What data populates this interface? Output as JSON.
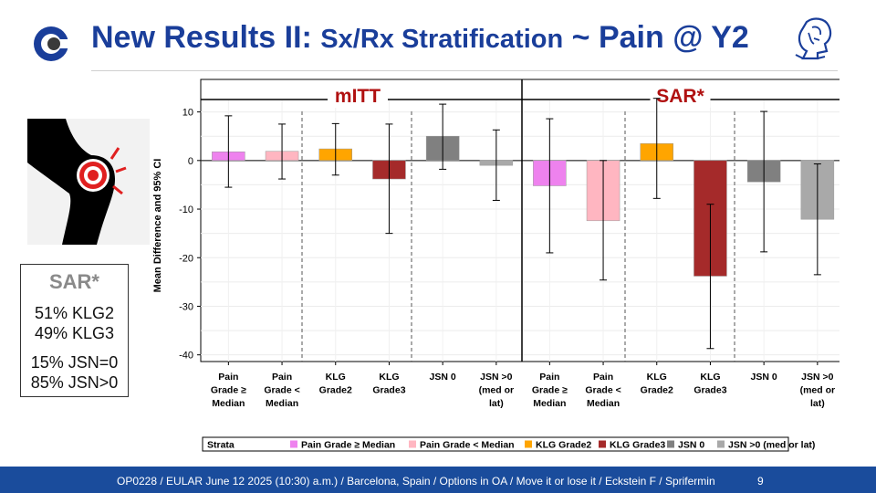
{
  "header": {
    "title_main": "New Results II:",
    "title_sub": "Sx/Rx Stratification",
    "title_tail": "~ Pain @ Y2"
  },
  "colors": {
    "title_blue": "#1a3e9a",
    "footer_blue": "#1a4c9c",
    "panel_title_red": "#b01010"
  },
  "sar_box": {
    "heading": "SAR*",
    "line1": "51% KLG2",
    "line2": "49% KLG3",
    "line3": "15% JSN=0",
    "line4": "85% JSN>0"
  },
  "footer": {
    "text": "OP0228 / EULAR  June 12 2025 (10:30) a.m.) / Barcelona, Spain / Options in OA / Move it or lose it / Eckstein F / Sprifermin",
    "page": "9"
  },
  "chart_data": {
    "type": "bar",
    "ylabel": "Mean Difference and 95% CI",
    "ylim": [
      -41,
      15
    ],
    "yticks": [
      10,
      0,
      -10,
      -20,
      -30,
      -40
    ],
    "panels": [
      {
        "title": "mITT",
        "bars": [
          {
            "label": [
              "Pain",
              "Grade ≥",
              "Median"
            ],
            "value": 1.8,
            "ci": [
              -5.5,
              9.2
            ],
            "color": "#ee82ee"
          },
          {
            "label": [
              "Pain",
              "Grade <",
              "Median"
            ],
            "value": 1.9,
            "ci": [
              -3.8,
              7.5
            ],
            "color": "#ffb6c1"
          },
          {
            "label": [
              "KLG",
              "Grade2"
            ],
            "value": 2.4,
            "ci": [
              -3.0,
              7.6
            ],
            "color": "#ffa500"
          },
          {
            "label": [
              "KLG",
              "Grade3"
            ],
            "value": -3.8,
            "ci": [
              -15.0,
              7.5
            ],
            "color": "#a52a2a"
          },
          {
            "label": [
              "JSN 0"
            ],
            "value": 5.0,
            "ci": [
              -1.8,
              11.6
            ],
            "color": "#808080"
          },
          {
            "label": [
              "JSN >0",
              "(med or",
              "lat)"
            ],
            "value": -1.0,
            "ci": [
              -8.2,
              6.3
            ],
            "color": "#a9a9a9"
          }
        ]
      },
      {
        "title": "SAR*",
        "bars": [
          {
            "label": [
              "Pain",
              "Grade ≥",
              "Median"
            ],
            "value": -5.2,
            "ci": [
              -19.0,
              8.6
            ],
            "color": "#ee82ee"
          },
          {
            "label": [
              "Pain",
              "Grade <",
              "Median"
            ],
            "value": -12.4,
            "ci": [
              -24.6,
              0.0
            ],
            "color": "#ffb6c1"
          },
          {
            "label": [
              "KLG",
              "Grade2"
            ],
            "value": 3.5,
            "ci": [
              -7.8,
              12.8
            ],
            "color": "#ffa500"
          },
          {
            "label": [
              "KLG",
              "Grade3"
            ],
            "value": -23.8,
            "ci": [
              -38.7,
              -9.0
            ],
            "color": "#a52a2a"
          },
          {
            "label": [
              "JSN 0"
            ],
            "value": -4.4,
            "ci": [
              -18.8,
              10.1
            ],
            "color": "#808080"
          },
          {
            "label": [
              "JSN >0",
              "(med or",
              "lat)"
            ],
            "value": -12.1,
            "ci": [
              -23.5,
              -0.7
            ],
            "color": "#a9a9a9"
          }
        ]
      }
    ],
    "legend": {
      "title": "Strata",
      "items": [
        {
          "label": "Pain Grade ≥ Median",
          "color": "#ee82ee"
        },
        {
          "label": "Pain Grade < Median",
          "color": "#ffb6c1"
        },
        {
          "label": "KLG Grade2",
          "color": "#ffa500"
        },
        {
          "label": "KLG Grade3",
          "color": "#a52a2a"
        },
        {
          "label": "JSN 0",
          "color": "#808080"
        },
        {
          "label": "JSN >0 (med or lat)",
          "color": "#a9a9a9"
        }
      ]
    }
  }
}
